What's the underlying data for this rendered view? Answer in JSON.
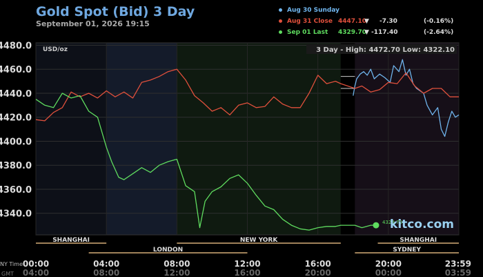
{
  "header": {
    "title": "Gold Spot (Bid) 3 Day",
    "datetime": "September 01, 2026 19:15"
  },
  "legend": [
    {
      "label": "Aug 30 Sunday",
      "value": "",
      "arrow": "",
      "change": "",
      "pct": "",
      "color": "#6fb4ec"
    },
    {
      "label": "Aug 31 Close",
      "value": "4447.10",
      "arrow": "▼",
      "change": "-7.30",
      "pct": "(-0.16%)",
      "color": "#e0503c"
    },
    {
      "label": "Sep 01 Last",
      "value": "4329.70",
      "arrow": "▼",
      "change": "-117.40",
      "pct": "(-2.64%)",
      "color": "#5fdc5f"
    }
  ],
  "colors": {
    "aug30": "#6fb4ec",
    "aug31": "#e0503c",
    "sep01": "#5fdc5f",
    "grid": "#2a2a2a",
    "session": "#a0825a"
  },
  "chart_data": {
    "type": "line",
    "units_label": "USD/oz",
    "range_label": "3 Day - High: 4472.70  Low: 4322.10",
    "high": 4472.7,
    "low": 4322.1,
    "ylim": [
      4322,
      4482
    ],
    "yticks": [
      4340.0,
      4360.0,
      4380.0,
      4400.0,
      4420.0,
      4440.0,
      4460.0,
      4480.0
    ],
    "xlim": [
      0,
      24
    ],
    "xticks": [
      {
        "t": 0,
        "ny": "00:00",
        "gmt": "04:00"
      },
      {
        "t": 4,
        "ny": "04:00",
        "gmt": "08:00"
      },
      {
        "t": 8,
        "ny": "08:00",
        "gmt": "12:00"
      },
      {
        "t": 12,
        "ny": "12:00",
        "gmt": "16:00"
      },
      {
        "t": 16,
        "ny": "16:00",
        "gmt": "20:00"
      },
      {
        "t": 20,
        "ny": "20:00",
        "gmt": "00:00"
      },
      {
        "t": 24,
        "ny": "23:59",
        "gmt": "03:59"
      }
    ],
    "x_row_labels": {
      "ny": "NY Time",
      "gmt": "GMT"
    },
    "sessions": [
      {
        "name": "SHANGHAI",
        "start": 0,
        "end": 4,
        "row": 0
      },
      {
        "name": "NEW YORK",
        "start": 8,
        "end": 17.3,
        "row": 0
      },
      {
        "name": "SHANGHAI",
        "start": 19.4,
        "end": 24,
        "row": 0
      },
      {
        "name": "LONDON",
        "start": 3,
        "end": 12,
        "row": 1
      },
      {
        "name": "SYDNEY",
        "start": 18.1,
        "end": 24,
        "row": 1
      }
    ],
    "bands": [
      {
        "start": 0,
        "end": 4,
        "color": "#0d1018"
      },
      {
        "start": 4,
        "end": 8,
        "color": "#141b2a"
      },
      {
        "start": 8,
        "end": 17.3,
        "color": "#0f1a10"
      },
      {
        "start": 17.3,
        "end": 18.1,
        "color": "#000000"
      },
      {
        "start": 18.1,
        "end": 24,
        "color": "#160f18"
      }
    ],
    "watermark": "kitco.com",
    "last_label": "4329.70",
    "series": [
      {
        "name": "Aug 30 Sunday",
        "color": "#6fb4ec",
        "x": [
          18.0,
          18.1,
          18.2,
          18.4,
          18.6,
          18.8,
          19.0,
          19.2,
          19.5,
          19.8,
          20.1,
          20.3,
          20.6,
          20.8,
          21.0,
          21.2,
          21.4,
          21.6,
          21.8,
          22.0,
          22.2,
          22.5,
          22.8,
          23.0,
          23.2,
          23.4,
          23.6,
          23.8,
          24.0
        ],
        "y": [
          4438,
          4446,
          4452,
          4456,
          4458,
          4455,
          4460,
          4452,
          4456,
          4453,
          4449,
          4463,
          4458,
          4468,
          4455,
          4460,
          4448,
          4444,
          4442,
          4440,
          4430,
          4422,
          4428,
          4410,
          4404,
          4416,
          4425,
          4420,
          4422
        ]
      },
      {
        "name": "Aug 31 Close",
        "color": "#e0503c",
        "x": [
          0.0,
          0.5,
          1.0,
          1.5,
          2.0,
          2.5,
          3.0,
          3.5,
          4.0,
          4.5,
          5.0,
          5.5,
          6.0,
          6.5,
          7.0,
          7.5,
          8.0,
          8.5,
          9.0,
          9.5,
          10.0,
          10.5,
          11.0,
          11.5,
          12.0,
          12.5,
          13.0,
          13.5,
          14.0,
          14.5,
          15.0,
          15.5,
          16.0,
          16.5,
          17.0,
          17.3,
          18.1,
          18.5,
          19.0,
          19.5,
          20.0,
          20.5,
          21.0,
          21.5,
          22.0,
          22.5,
          23.0,
          23.5,
          24.0
        ],
        "y": [
          4418,
          4417,
          4424,
          4428,
          4441,
          4437,
          4440,
          4436,
          4442,
          4437,
          4441,
          4436,
          4449,
          4451,
          4454,
          4458,
          4460,
          4451,
          4438,
          4432,
          4425,
          4428,
          4422,
          4430,
          4432,
          4428,
          4429,
          4437,
          4431,
          4428,
          4428,
          4440,
          4455,
          4448,
          4450,
          4448,
          4444,
          4446,
          4441,
          4443,
          4449,
          4448,
          4457,
          4446,
          4440,
          4444,
          4444,
          4437,
          4437
        ]
      },
      {
        "name": "Sep 01 Last",
        "color": "#5fdc5f",
        "x": [
          0.0,
          0.5,
          1.0,
          1.5,
          2.0,
          2.5,
          3.0,
          3.5,
          4.0,
          4.3,
          4.7,
          5.0,
          5.5,
          6.0,
          6.5,
          7.0,
          7.5,
          8.0,
          8.5,
          9.0,
          9.3,
          9.6,
          10.0,
          10.5,
          11.0,
          11.5,
          12.0,
          12.5,
          13.0,
          13.5,
          14.0,
          14.5,
          15.0,
          15.5,
          16.0,
          16.5,
          17.0,
          17.3,
          18.1,
          18.5,
          19.0,
          19.3
        ],
        "y": [
          4435,
          4430,
          4428,
          4440,
          4436,
          4438,
          4425,
          4420,
          4395,
          4383,
          4370,
          4368,
          4373,
          4378,
          4374,
          4380,
          4383,
          4385,
          4363,
          4358,
          4328,
          4350,
          4358,
          4362,
          4369,
          4372,
          4365,
          4355,
          4346,
          4343,
          4335,
          4330,
          4327,
          4326,
          4328,
          4329,
          4329,
          4330,
          4330,
          4328,
          4330,
          4330
        ]
      }
    ]
  }
}
